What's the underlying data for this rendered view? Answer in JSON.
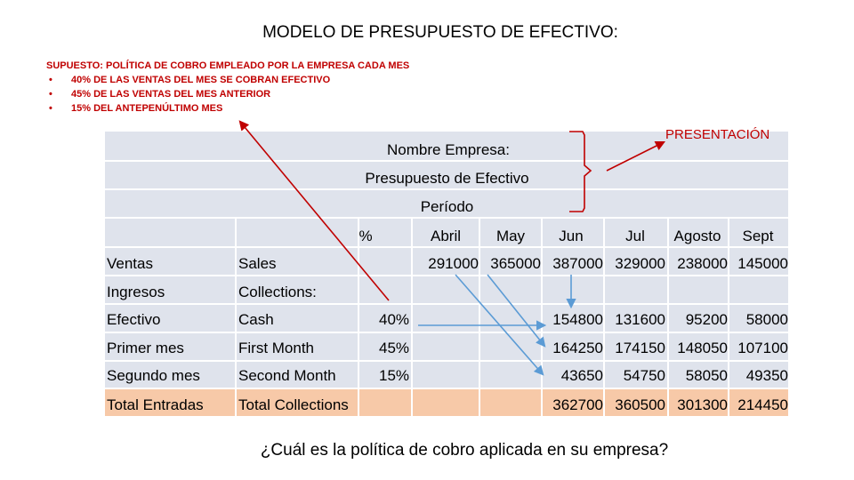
{
  "title": "MODELO DE PRESUPUESTO DE EFECTIVO:",
  "assumption": {
    "heading": "SUPUESTO: POLÍTICA DE COBRO EMPLEADO POR LA EMPRESA CADA MES",
    "bullets": [
      "40% DE LAS VENTAS DEL MES SE COBRAN  EFECTIVO",
      "45% DE LAS VENTAS DEL MES ANTERIOR",
      "15% DEL ANTEPENÚLTIMO MES"
    ]
  },
  "presentation_label": "PRESENTACIÓN",
  "table": {
    "company_label": "Nombre Empresa:",
    "budget_label": "Presupuesto de Efectivo",
    "period_label": "Período",
    "percent_header": "%",
    "months": [
      "Abril",
      "May",
      "Jun",
      "Jul",
      "Agosto",
      "Sept"
    ],
    "rows": [
      {
        "es": "Ventas",
        "en": "Sales",
        "pct": "",
        "values": [
          "291000",
          "365000",
          "387000",
          "329000",
          "238000",
          "145000"
        ]
      },
      {
        "es": "Ingresos",
        "en": "Collections:",
        "pct": "",
        "values": [
          "",
          "",
          "",
          "",
          "",
          ""
        ]
      },
      {
        "es": "Efectivo",
        "en": "Cash",
        "pct": "40%",
        "values": [
          "",
          "",
          "154800",
          "131600",
          "95200",
          "58000"
        ]
      },
      {
        "es": "Primer mes",
        "en": "First Month",
        "pct": "45%",
        "values": [
          "",
          "",
          "164250",
          "174150",
          "148050",
          "107100"
        ]
      },
      {
        "es": "Segundo mes",
        "en": "Second Month",
        "pct": "15%",
        "values": [
          "",
          "",
          "43650",
          "54750",
          "58050",
          "49350"
        ]
      },
      {
        "es": "Total Entradas",
        "en": "Total Collections",
        "pct": "",
        "values": [
          "",
          "",
          "362700",
          "360500",
          "301300",
          "214450"
        ]
      }
    ]
  },
  "question": "¿Cuál es la política de cobro aplicada en su empresa?",
  "colors": {
    "accent_red": "#c00000",
    "arrow_blue": "#5b9bd5",
    "table_bg": "#dfe3ec",
    "total_row": "#f7c9a8"
  }
}
